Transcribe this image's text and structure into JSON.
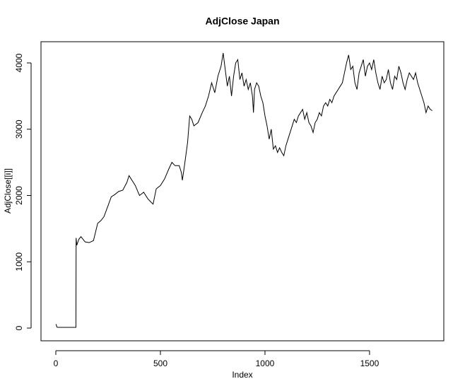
{
  "chart_data": {
    "type": "line",
    "title": "AdjClose Japan",
    "x_label": "Index",
    "y_label": "AdjClose[[i]]",
    "color": "#000000",
    "x": [
      1,
      5,
      10,
      50,
      96,
      97,
      100,
      110,
      120,
      140,
      160,
      180,
      200,
      215,
      230,
      250,
      265,
      280,
      300,
      320,
      340,
      350,
      360,
      380,
      400,
      420,
      440,
      455,
      465,
      480,
      500,
      520,
      540,
      555,
      570,
      590,
      600,
      605,
      615,
      630,
      640,
      650,
      660,
      680,
      700,
      715,
      730,
      745,
      760,
      775,
      790,
      800,
      810,
      820,
      830,
      840,
      850,
      860,
      870,
      880,
      890,
      900,
      910,
      920,
      930,
      940,
      945,
      950,
      960,
      970,
      980,
      990,
      1000,
      1010,
      1020,
      1030,
      1040,
      1050,
      1060,
      1070,
      1080,
      1090,
      1100,
      1110,
      1120,
      1130,
      1140,
      1150,
      1160,
      1170,
      1180,
      1190,
      1200,
      1210,
      1220,
      1230,
      1240,
      1250,
      1260,
      1270,
      1280,
      1290,
      1300,
      1310,
      1320,
      1330,
      1340,
      1350,
      1360,
      1370,
      1380,
      1390,
      1400,
      1410,
      1420,
      1430,
      1440,
      1450,
      1460,
      1470,
      1480,
      1490,
      1500,
      1510,
      1520,
      1530,
      1540,
      1550,
      1560,
      1570,
      1580,
      1590,
      1600,
      1610,
      1620,
      1630,
      1640,
      1650,
      1660,
      1670,
      1680,
      1690,
      1700,
      1710,
      1720,
      1730,
      1740,
      1750,
      1760,
      1770,
      1780,
      1790,
      1800
    ],
    "values": [
      60,
      15,
      10,
      10,
      10,
      1360,
      1250,
      1340,
      1380,
      1300,
      1290,
      1320,
      1580,
      1620,
      1680,
      1850,
      1980,
      2010,
      2060,
      2080,
      2200,
      2300,
      2250,
      2150,
      2000,
      2050,
      1950,
      1900,
      1870,
      2100,
      2150,
      2250,
      2400,
      2500,
      2450,
      2450,
      2350,
      2230,
      2450,
      2800,
      3200,
      3150,
      3050,
      3100,
      3250,
      3350,
      3500,
      3700,
      3550,
      3800,
      3950,
      4150,
      3900,
      3650,
      3800,
      3500,
      3800,
      4000,
      4050,
      3750,
      3850,
      3650,
      3750,
      3600,
      3700,
      3500,
      3250,
      3600,
      3700,
      3650,
      3500,
      3400,
      3200,
      3050,
      2850,
      3000,
      2700,
      2750,
      2650,
      2720,
      2650,
      2600,
      2750,
      2850,
      2950,
      3050,
      3150,
      3100,
      3200,
      3250,
      3300,
      3150,
      3250,
      3100,
      3050,
      2950,
      3100,
      3150,
      3250,
      3200,
      3350,
      3400,
      3350,
      3450,
      3400,
      3500,
      3550,
      3600,
      3650,
      3700,
      3850,
      4000,
      4120,
      3900,
      3950,
      3700,
      3600,
      3850,
      3950,
      4050,
      3800,
      3950,
      4000,
      3900,
      4050,
      3850,
      3700,
      3600,
      3800,
      3700,
      3750,
      3900,
      3700,
      3600,
      3800,
      3750,
      3950,
      3850,
      3700,
      3600,
      3750,
      3850,
      3800,
      3750,
      3850,
      3700,
      3600,
      3500,
      3400,
      3250,
      3350,
      3300,
      3280
    ],
    "xlim": [
      -71,
      1855
    ],
    "ylim": [
      -192,
      4320
    ],
    "xticks": [
      0,
      500,
      1000,
      1500
    ],
    "yticks": [
      0,
      1000,
      2000,
      3000,
      4000
    ]
  }
}
